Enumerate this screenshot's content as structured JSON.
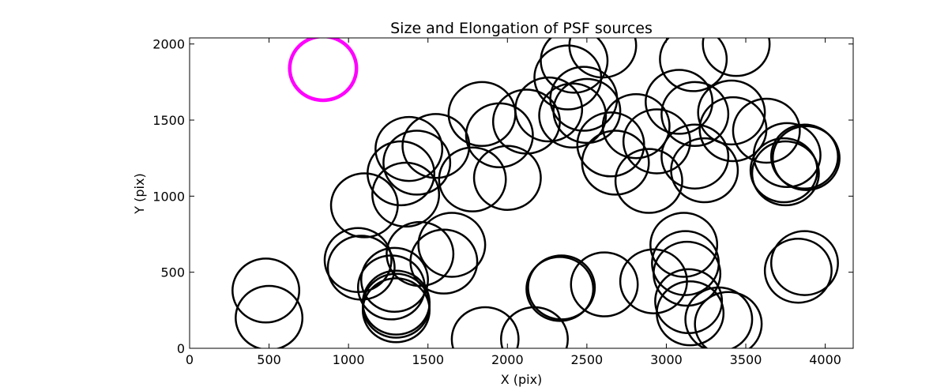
{
  "chart_data": {
    "type": "scatter",
    "title": "Size and Elongation of PSF sources",
    "xlabel": "X (pix)",
    "ylabel": "Y (pix)",
    "xlim": [
      0,
      4176
    ],
    "ylim": [
      0,
      2040
    ],
    "xticks": [
      0,
      500,
      1000,
      1500,
      2000,
      2500,
      3000,
      3500,
      4000
    ],
    "yticks": [
      0,
      500,
      1000,
      1500,
      2000
    ],
    "xtick_labels": [
      "0",
      "500",
      "1000",
      "1500",
      "2000",
      "2500",
      "3000",
      "3500",
      "4000"
    ],
    "ytick_labels": [
      "0",
      "500",
      "1000",
      "1500",
      "2000"
    ],
    "grid": false,
    "marker_color": "#000000",
    "highlight_color": "#ff00ff",
    "circle_radius": 210,
    "highlight_source": {
      "x": 840,
      "y": 1840
    },
    "sources": [
      {
        "x": 480,
        "y": 380
      },
      {
        "x": 500,
        "y": 200
      },
      {
        "x": 1060,
        "y": 580
      },
      {
        "x": 1080,
        "y": 530
      },
      {
        "x": 1100,
        "y": 940
      },
      {
        "x": 1270,
        "y": 400
      },
      {
        "x": 1290,
        "y": 450
      },
      {
        "x": 1300,
        "y": 300
      },
      {
        "x": 1300,
        "y": 280
      },
      {
        "x": 1300,
        "y": 250
      },
      {
        "x": 1330,
        "y": 1150
      },
      {
        "x": 1360,
        "y": 1010
      },
      {
        "x": 1380,
        "y": 1310
      },
      {
        "x": 1430,
        "y": 1220
      },
      {
        "x": 1450,
        "y": 620
      },
      {
        "x": 1550,
        "y": 1330
      },
      {
        "x": 1600,
        "y": 570
      },
      {
        "x": 1650,
        "y": 680
      },
      {
        "x": 1780,
        "y": 1110
      },
      {
        "x": 1840,
        "y": 1540
      },
      {
        "x": 1860,
        "y": 60
      },
      {
        "x": 1950,
        "y": 1400
      },
      {
        "x": 2000,
        "y": 1120
      },
      {
        "x": 2120,
        "y": 1490
      },
      {
        "x": 2170,
        "y": 60
      },
      {
        "x": 2260,
        "y": 1570
      },
      {
        "x": 2330,
        "y": 390
      },
      {
        "x": 2340,
        "y": 400
      },
      {
        "x": 2380,
        "y": 1780
      },
      {
        "x": 2410,
        "y": 1530
      },
      {
        "x": 2420,
        "y": 1890
      },
      {
        "x": 2480,
        "y": 1640
      },
      {
        "x": 2500,
        "y": 1560
      },
      {
        "x": 2600,
        "y": 1990
      },
      {
        "x": 2610,
        "y": 420
      },
      {
        "x": 2650,
        "y": 1340
      },
      {
        "x": 2680,
        "y": 1220
      },
      {
        "x": 2810,
        "y": 1460
      },
      {
        "x": 2890,
        "y": 1100
      },
      {
        "x": 2920,
        "y": 440
      },
      {
        "x": 2940,
        "y": 1360
      },
      {
        "x": 3080,
        "y": 1620
      },
      {
        "x": 3110,
        "y": 680
      },
      {
        "x": 3120,
        "y": 560
      },
      {
        "x": 3130,
        "y": 490
      },
      {
        "x": 3140,
        "y": 310
      },
      {
        "x": 3150,
        "y": 230
      },
      {
        "x": 3170,
        "y": 1900
      },
      {
        "x": 3180,
        "y": 1540
      },
      {
        "x": 3180,
        "y": 1260
      },
      {
        "x": 3240,
        "y": 1170
      },
      {
        "x": 3330,
        "y": 190
      },
      {
        "x": 3390,
        "y": 160
      },
      {
        "x": 3410,
        "y": 1550
      },
      {
        "x": 3420,
        "y": 1440
      },
      {
        "x": 3440,
        "y": 2000
      },
      {
        "x": 3630,
        "y": 1430
      },
      {
        "x": 3740,
        "y": 1170
      },
      {
        "x": 3750,
        "y": 1150
      },
      {
        "x": 3760,
        "y": 1270
      },
      {
        "x": 3830,
        "y": 510
      },
      {
        "x": 3870,
        "y": 560
      },
      {
        "x": 3870,
        "y": 1260
      },
      {
        "x": 3880,
        "y": 1250
      }
    ]
  }
}
